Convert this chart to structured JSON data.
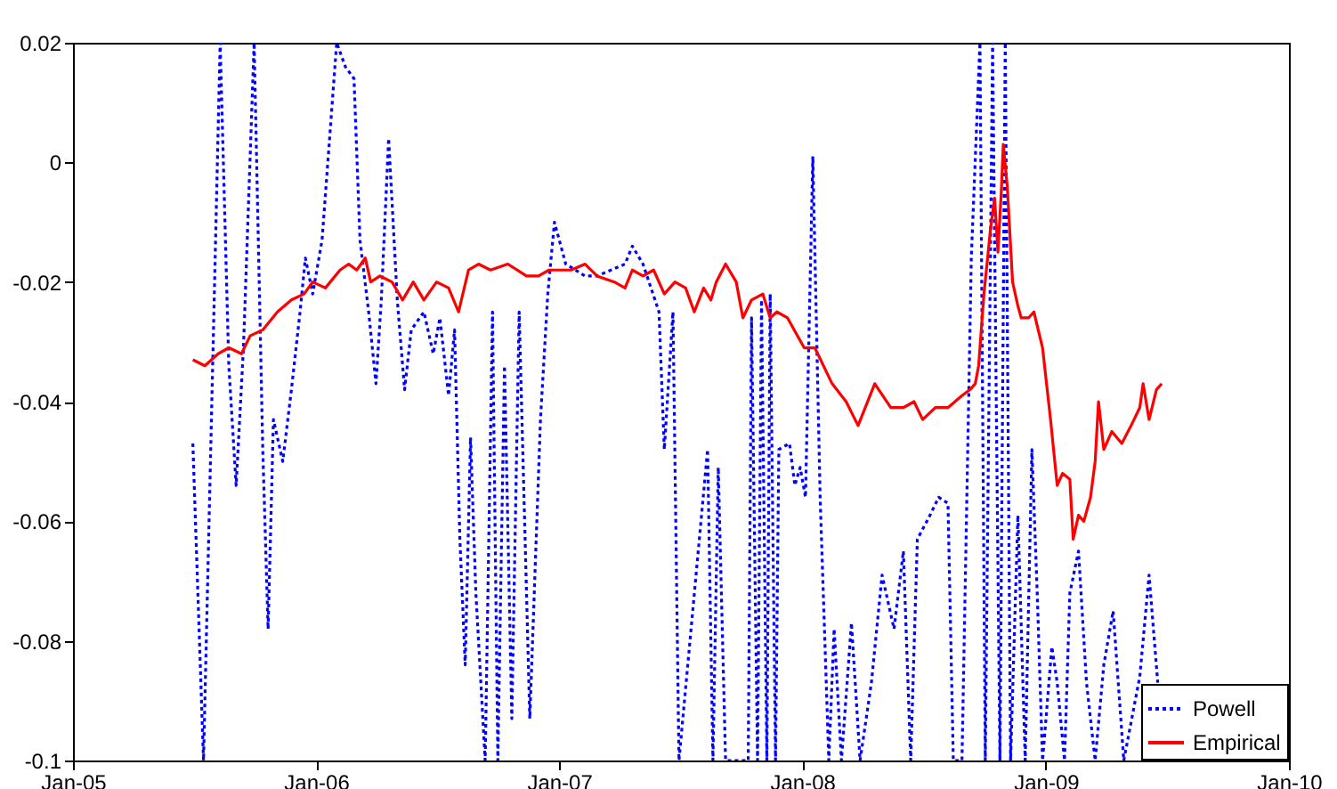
{
  "chart_data": {
    "type": "line",
    "xlim": [
      "2005-01-01",
      "2010-01-01"
    ],
    "ylim": [
      -0.1,
      0.02
    ],
    "xticks": [
      {
        "value": "2005-01-01",
        "label": "Jan-05"
      },
      {
        "value": "2006-01-01",
        "label": "Jan-06"
      },
      {
        "value": "2007-01-01",
        "label": "Jan-07"
      },
      {
        "value": "2008-01-01",
        "label": "Jan-08"
      },
      {
        "value": "2009-01-01",
        "label": "Jan-09"
      },
      {
        "value": "2010-01-01",
        "label": "Jan-10"
      }
    ],
    "yticks": [
      -0.1,
      -0.08,
      -0.06,
      -0.04,
      -0.02,
      0,
      0.02
    ],
    "grid": false,
    "legend": "bottom right",
    "series": [
      {
        "name": "Powell",
        "color": "#0000ff",
        "line_style": "dotted",
        "x": [
          "2005-06-30",
          "2005-07-16",
          "2005-08-10",
          "2005-08-23",
          "2005-09-03",
          "2005-09-14",
          "2005-09-30",
          "2005-10-13",
          "2005-10-21",
          "2005-10-29",
          "2005-11-12",
          "2005-11-25",
          "2005-12-08",
          "2005-12-16",
          "2005-12-27",
          "2006-01-10",
          "2006-02-01",
          "2006-02-14",
          "2006-02-27",
          "2006-03-08",
          "2006-03-21",
          "2006-04-01",
          "2006-04-09",
          "2006-04-20",
          "2006-05-03",
          "2006-05-14",
          "2006-05-24",
          "2006-06-12",
          "2006-06-26",
          "2006-07-06",
          "2006-07-19",
          "2006-07-28",
          "2006-08-05",
          "2006-08-13",
          "2006-08-21",
          "2006-08-29",
          "2006-09-12",
          "2006-09-23",
          "2006-10-01",
          "2006-10-11",
          "2006-10-22",
          "2006-11-02",
          "2006-11-18",
          "2006-12-04",
          "2006-12-15",
          "2006-12-25",
          "2007-01-11",
          "2007-02-09",
          "2007-02-27",
          "2007-04-10",
          "2007-04-21",
          "2007-05-07",
          "2007-05-31",
          "2007-06-08",
          "2007-06-21",
          "2007-06-30",
          "2007-08-12",
          "2007-08-20",
          "2007-08-28",
          "2007-09-08",
          "2007-10-12",
          "2007-10-17",
          "2007-10-26",
          "2007-11-01",
          "2007-11-09",
          "2007-11-14",
          "2007-11-22",
          "2007-11-27",
          "2007-12-13",
          "2007-12-21",
          "2007-12-29",
          "2008-01-06",
          "2008-01-17",
          "2008-01-28",
          "2008-02-10",
          "2008-02-18",
          "2008-02-29",
          "2008-03-15",
          "2008-03-28",
          "2008-04-14",
          "2008-04-30",
          "2008-05-18",
          "2008-06-01",
          "2008-06-12",
          "2008-06-22",
          "2008-07-11",
          "2008-07-24",
          "2008-08-07",
          "2008-08-15",
          "2008-08-28",
          "2008-09-11",
          "2008-09-24",
          "2008-10-02",
          "2008-10-13",
          "2008-10-24",
          "2008-11-01",
          "2008-11-09",
          "2008-11-20",
          "2008-12-01",
          "2008-12-11",
          "2008-12-19",
          "2008-12-27",
          "2009-01-10",
          "2009-01-18",
          "2009-01-29",
          "2009-02-06",
          "2009-02-19",
          "2009-03-03",
          "2009-03-16",
          "2009-03-29",
          "2009-04-12",
          "2009-04-28",
          "2009-05-22",
          "2009-06-05",
          "2009-06-18"
        ],
        "values": [
          -0.047,
          -0.1,
          0.02,
          -0.034,
          -0.054,
          -0.031,
          0.02,
          -0.048,
          -0.078,
          -0.043,
          -0.05,
          -0.038,
          -0.025,
          -0.016,
          -0.022,
          -0.013,
          0.02,
          0.016,
          0.014,
          -0.013,
          -0.025,
          -0.037,
          -0.023,
          0.004,
          -0.023,
          -0.038,
          -0.028,
          -0.025,
          -0.032,
          -0.026,
          -0.039,
          -0.028,
          -0.063,
          -0.084,
          -0.046,
          -0.072,
          -0.1,
          -0.025,
          -0.1,
          -0.034,
          -0.093,
          -0.025,
          -0.093,
          -0.043,
          -0.022,
          -0.01,
          -0.017,
          -0.019,
          -0.019,
          -0.017,
          -0.014,
          -0.017,
          -0.025,
          -0.048,
          -0.025,
          -0.1,
          -0.048,
          -0.1,
          -0.051,
          -0.1,
          -0.1,
          -0.026,
          -0.1,
          -0.023,
          -0.1,
          -0.022,
          -0.1,
          -0.048,
          -0.047,
          -0.054,
          -0.051,
          -0.056,
          0.001,
          -0.056,
          -0.1,
          -0.078,
          -0.1,
          -0.077,
          -0.1,
          -0.087,
          -0.069,
          -0.078,
          -0.065,
          -0.1,
          -0.063,
          -0.059,
          -0.056,
          -0.057,
          -0.1,
          -0.1,
          -0.016,
          0.02,
          -0.1,
          0.02,
          -0.1,
          0.02,
          -0.1,
          -0.059,
          -0.1,
          -0.048,
          -0.072,
          -0.1,
          -0.081,
          -0.087,
          -0.1,
          -0.072,
          -0.065,
          -0.087,
          -0.1,
          -0.084,
          -0.075,
          -0.1,
          -0.086,
          -0.069,
          -0.087
        ]
      },
      {
        "name": "Empirical",
        "color": "#ff0000",
        "line_style": "solid",
        "x": [
          "2005-06-30",
          "2005-07-18",
          "2005-08-07",
          "2005-08-23",
          "2005-09-11",
          "2005-09-24",
          "2005-10-13",
          "2005-11-04",
          "2005-11-25",
          "2005-12-14",
          "2005-12-27",
          "2006-01-15",
          "2006-02-06",
          "2006-02-19",
          "2006-03-03",
          "2006-03-16",
          "2006-03-24",
          "2006-04-07",
          "2006-04-25",
          "2006-05-11",
          "2006-05-27",
          "2006-06-12",
          "2006-07-01",
          "2006-07-19",
          "2006-08-03",
          "2006-08-18",
          "2006-09-02",
          "2006-09-20",
          "2006-10-16",
          "2006-11-13",
          "2006-12-01",
          "2006-12-17",
          "2007-01-19",
          "2007-02-09",
          "2007-02-27",
          "2007-03-25",
          "2007-04-10",
          "2007-04-21",
          "2007-05-07",
          "2007-05-23",
          "2007-06-08",
          "2007-06-24",
          "2007-07-10",
          "2007-07-23",
          "2007-08-06",
          "2007-08-17",
          "2007-08-25",
          "2007-09-08",
          "2007-09-24",
          "2007-10-04",
          "2007-10-17",
          "2007-11-03",
          "2007-11-14",
          "2007-11-24",
          "2007-12-10",
          "2008-01-04",
          "2008-01-20",
          "2008-02-15",
          "2008-03-07",
          "2008-03-25",
          "2008-04-19",
          "2008-05-13",
          "2008-06-01",
          "2008-06-17",
          "2008-06-30",
          "2008-07-19",
          "2008-08-07",
          "2008-08-28",
          "2008-09-09",
          "2008-09-17",
          "2008-09-22",
          "2008-09-30",
          "2008-10-10",
          "2008-10-16",
          "2008-10-21",
          "2008-10-26",
          "2008-10-29",
          "2008-11-04",
          "2008-11-12",
          "2008-11-20",
          "2008-11-25",
          "2008-12-06",
          "2008-12-14",
          "2008-12-27",
          "2009-01-08",
          "2009-01-18",
          "2009-01-26",
          "2009-02-06",
          "2009-02-11",
          "2009-02-19",
          "2009-02-27",
          "2009-03-09",
          "2009-03-16",
          "2009-03-21",
          "2009-03-29",
          "2009-04-10",
          "2009-04-25",
          "2009-05-09",
          "2009-05-22",
          "2009-05-27",
          "2009-06-05",
          "2009-06-16",
          "2009-06-24"
        ],
        "values": [
          -0.033,
          -0.034,
          -0.032,
          -0.031,
          -0.032,
          -0.029,
          -0.028,
          -0.025,
          -0.023,
          -0.022,
          -0.02,
          -0.021,
          -0.018,
          -0.017,
          -0.018,
          -0.016,
          -0.02,
          -0.019,
          -0.02,
          -0.023,
          -0.02,
          -0.023,
          -0.02,
          -0.021,
          -0.025,
          -0.018,
          -0.017,
          -0.018,
          -0.017,
          -0.019,
          -0.019,
          -0.018,
          -0.018,
          -0.017,
          -0.019,
          -0.02,
          -0.021,
          -0.018,
          -0.019,
          -0.018,
          -0.022,
          -0.02,
          -0.021,
          -0.025,
          -0.021,
          -0.023,
          -0.02,
          -0.017,
          -0.02,
          -0.026,
          -0.023,
          -0.022,
          -0.026,
          -0.025,
          -0.026,
          -0.031,
          -0.031,
          -0.037,
          -0.04,
          -0.044,
          -0.037,
          -0.041,
          -0.041,
          -0.04,
          -0.043,
          -0.041,
          -0.041,
          -0.039,
          -0.038,
          -0.037,
          -0.034,
          -0.022,
          -0.011,
          -0.006,
          -0.015,
          -0.005,
          0.003,
          -0.004,
          -0.02,
          -0.024,
          -0.026,
          -0.026,
          -0.025,
          -0.031,
          -0.043,
          -0.054,
          -0.052,
          -0.053,
          -0.063,
          -0.059,
          -0.06,
          -0.056,
          -0.05,
          -0.04,
          -0.048,
          -0.045,
          -0.047,
          -0.044,
          -0.041,
          -0.037,
          -0.043,
          -0.038,
          -0.037
        ]
      }
    ]
  }
}
